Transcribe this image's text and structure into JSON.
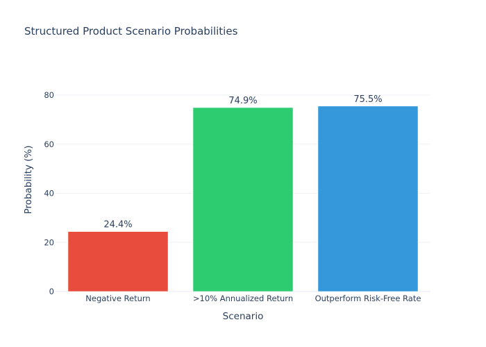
{
  "chart_data": {
    "type": "bar",
    "title": "Structured Product Scenario Probabilities",
    "xlabel": "Scenario",
    "ylabel": "Probability (%)",
    "categories": [
      "Negative Return",
      ">10% Annualized Return",
      "Outperform Risk-Free Rate"
    ],
    "values": [
      24.4,
      74.9,
      75.5
    ],
    "data_labels": [
      "24.4%",
      "74.9%",
      "75.5%"
    ],
    "colors": [
      "#e74c3c",
      "#2ecc71",
      "#3498db"
    ],
    "ylim": [
      0,
      80
    ],
    "yticks": [
      0,
      20,
      40,
      60,
      80
    ],
    "grid": true,
    "legend": "none"
  }
}
